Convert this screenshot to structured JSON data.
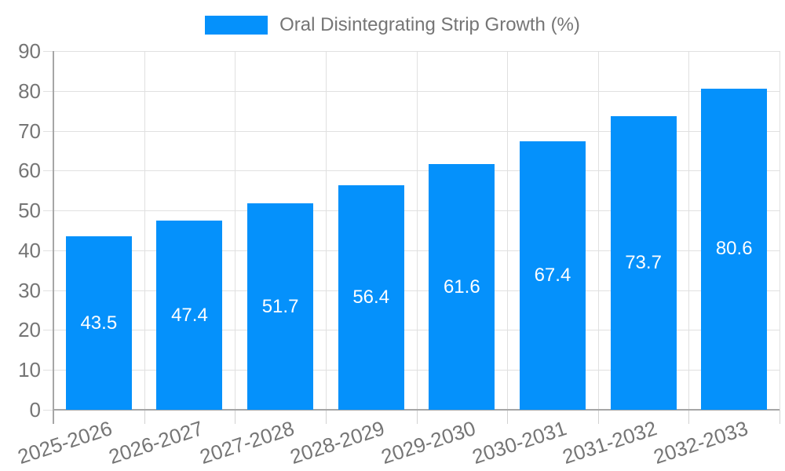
{
  "legend": {
    "label": "Oral Disintegrating Strip Growth (%)"
  },
  "colors": {
    "bar": "#0591fb",
    "grid": "#e0e0e0",
    "tick": "#d2d2d2",
    "axis": "#a6a6a6",
    "axis_text": "#757575",
    "bar_label_text": "#ffffff",
    "background": "#ffffff"
  },
  "chart_data": {
    "type": "bar",
    "title": "",
    "xlabel": "",
    "ylabel": "",
    "categories": [
      "2025-2026",
      "2026-2027",
      "2027-2028",
      "2028-2029",
      "2029-2030",
      "2030-2031",
      "2031-2032",
      "2032-2033"
    ],
    "series": [
      {
        "name": "Oral Disintegrating Strip Growth (%)",
        "values": [
          43.5,
          47.4,
          51.7,
          56.4,
          61.6,
          67.4,
          73.7,
          80.6
        ],
        "labels": [
          "43.5",
          "47.4",
          "51.7",
          "56.4",
          "61.6",
          "67.4",
          "73.7",
          "80.6"
        ]
      }
    ],
    "ylim": [
      0,
      90
    ],
    "yticks": [
      0,
      10,
      20,
      30,
      40,
      50,
      60,
      70,
      80,
      90
    ],
    "ytick_labels": [
      "0",
      "10",
      "20",
      "30",
      "40",
      "50",
      "60",
      "70",
      "80",
      "90"
    ],
    "grid": true,
    "legend_position": "top-center",
    "bar_label_position": "inside-center",
    "x_label_rotation_deg": -18
  }
}
